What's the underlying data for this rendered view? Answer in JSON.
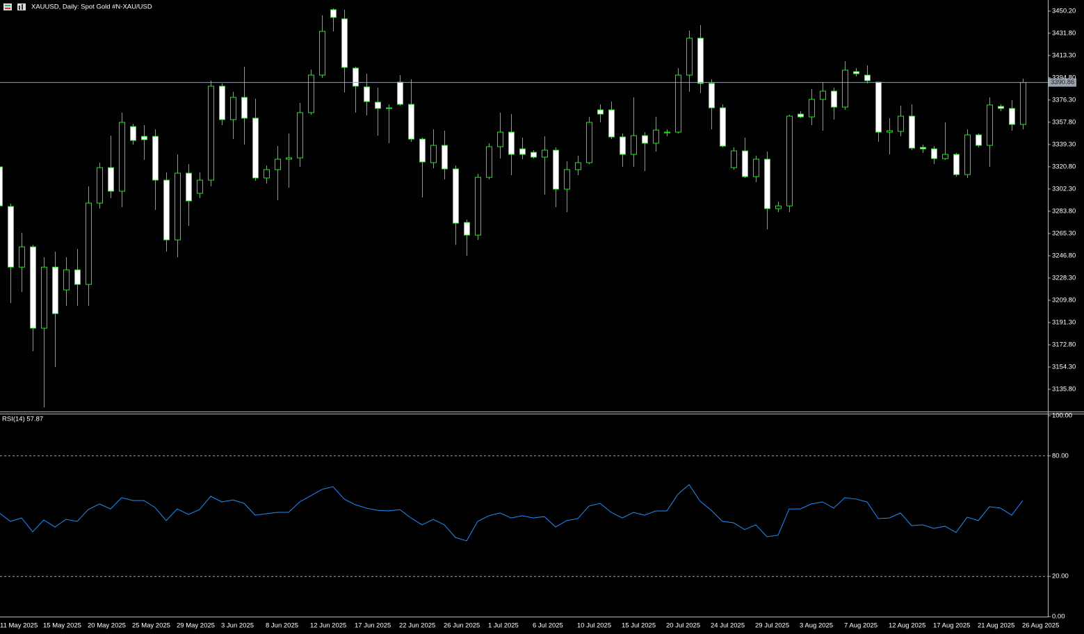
{
  "chart_data": [
    {
      "type": "candlestick",
      "title": "XAUUSD, Daily:  Spot Gold #N-XAU/USD",
      "categories": [
        "11 May 2025",
        null,
        null,
        null,
        "15 May 2025",
        null,
        null,
        null,
        "20 May 2025",
        null,
        null,
        null,
        "25 May 2025",
        null,
        null,
        null,
        "29 May 2025",
        null,
        null,
        null,
        "3 Jun 2025",
        null,
        null,
        null,
        "8 Jun 2025",
        null,
        null,
        null,
        "12 Jun 2025",
        null,
        null,
        null,
        "17 Jun 2025",
        null,
        null,
        null,
        "22 Jun 2025",
        null,
        null,
        null,
        "26 Jun 2025",
        null,
        null,
        null,
        "1 Jul 2025",
        null,
        null,
        null,
        "6 Jul 2025",
        null,
        null,
        null,
        "10 Jul 2025",
        null,
        null,
        null,
        "15 Jul 2025",
        null,
        null,
        null,
        "20 Jul 2025",
        null,
        null,
        null,
        "24 Jul 2025",
        null,
        null,
        null,
        "29 Jul 2025",
        null,
        null,
        null,
        "3 Aug 2025",
        null,
        null,
        null,
        "7 Aug 2025",
        null,
        null,
        null,
        "12 Aug 2025",
        null,
        null,
        null,
        "17 Aug 2025",
        null,
        null,
        null,
        "21 Aug 2025",
        null,
        null,
        null,
        "26 Aug 2025"
      ],
      "open": [
        3320.7,
        3287.8,
        3237.4,
        3254.2,
        3186.6,
        3237.4,
        3218.4,
        3235.1,
        3223.0,
        3290.6,
        3320.1,
        3300.5,
        3354.2,
        3346.1,
        3346.1,
        3309.7,
        3260.0,
        3315.5,
        3298.7,
        3309.7,
        3387.8,
        3360.0,
        3378.5,
        3361.2,
        3311.5,
        3318.4,
        3327.1,
        3328.2,
        3365.8,
        3397.0,
        3451.4,
        3443.8,
        3402.8,
        3387.2,
        3374.5,
        3369.8,
        3391.2,
        3372.7,
        3343.8,
        3324.2,
        3338.6,
        3319.0,
        3274.5,
        3264.0,
        3312.0,
        3337.5,
        3349.6,
        3335.7,
        3332.8,
        3328.8,
        3334.6,
        3302.2,
        3318.4,
        3324.2,
        3368.1,
        3368.1,
        3345.6,
        3331.1,
        3346.7,
        3340.4,
        3349.0,
        3349.6,
        3397.0,
        3427.7,
        3390.1,
        3369.8,
        3320.1,
        3334.0,
        3312.6,
        3327.1,
        3286.0,
        3288.3,
        3364.6,
        3362.3,
        3376.8,
        3383.7,
        3370.4,
        3399.9,
        3397.0,
        3391.2,
        3349.6,
        3350.2,
        3362.9,
        3336.9,
        3335.7,
        3327.6,
        3331.1,
        3314.3,
        3347.3,
        3338.6,
        3371.0,
        3369.3,
        3356.0
      ],
      "high": [
        3326.5,
        3290.1,
        3265.8,
        3255.9,
        3245.5,
        3250.2,
        3245.5,
        3252.5,
        3304.5,
        3324.2,
        3346.7,
        3365.8,
        3356.5,
        3355.4,
        3351.9,
        3316.1,
        3331.1,
        3323.0,
        3316.1,
        3392.4,
        3390.1,
        3383.1,
        3404.0,
        3377.4,
        3321.9,
        3338.0,
        3348.5,
        3373.9,
        3401.6,
        3446.7,
        3452.5,
        3451.4,
        3404.0,
        3398.2,
        3386.6,
        3372.7,
        3397.0,
        3393.5,
        3345.0,
        3351.9,
        3350.8,
        3321.9,
        3276.8,
        3314.9,
        3340.4,
        3365.8,
        3364.6,
        3345.0,
        3334.6,
        3346.1,
        3336.9,
        3325.3,
        3330.0,
        3362.3,
        3372.7,
        3375.0,
        3348.5,
        3378.5,
        3349.6,
        3362.3,
        3351.9,
        3402.8,
        3434.0,
        3438.6,
        3393.5,
        3372.7,
        3336.9,
        3345.0,
        3330.0,
        3333.4,
        3291.8,
        3364.1,
        3367.0,
        3385.5,
        3391.2,
        3386.6,
        3408.6,
        3402.8,
        3405.1,
        3391.2,
        3361.2,
        3371.6,
        3372.7,
        3339.2,
        3338.0,
        3357.7,
        3332.3,
        3351.9,
        3348.5,
        3378.5,
        3372.7,
        3376.2,
        3394.1
      ],
      "low": [
        3286.0,
        3207.4,
        3216.6,
        3167.5,
        3120.7,
        3154.2,
        3205.1,
        3205.1,
        3205.1,
        3286.0,
        3294.7,
        3287.2,
        3339.2,
        3326.5,
        3284.9,
        3250.2,
        3245.5,
        3271.6,
        3294.7,
        3304.5,
        3355.4,
        3343.8,
        3339.2,
        3309.1,
        3306.8,
        3293.0,
        3303.4,
        3320.7,
        3364.1,
        3394.7,
        3433.4,
        3382.6,
        3365.8,
        3363.5,
        3346.7,
        3340.4,
        3371.6,
        3341.5,
        3295.3,
        3319.5,
        3310.3,
        3255.9,
        3246.7,
        3260.0,
        3310.3,
        3327.6,
        3313.8,
        3327.1,
        3327.6,
        3297.6,
        3287.2,
        3283.1,
        3313.8,
        3323.0,
        3357.7,
        3343.8,
        3320.7,
        3320.7,
        3317.2,
        3333.4,
        3346.1,
        3348.5,
        3383.1,
        3382.0,
        3351.9,
        3336.9,
        3318.4,
        3311.5,
        3308.0,
        3268.7,
        3283.1,
        3283.1,
        3361.2,
        3355.4,
        3350.8,
        3360.0,
        3368.1,
        3395.9,
        3390.1,
        3341.5,
        3331.1,
        3346.1,
        3334.6,
        3332.3,
        3323.0,
        3326.5,
        3312.6,
        3311.5,
        3336.9,
        3320.7,
        3367.0,
        3350.8,
        3351.9
      ],
      "close": [
        3288.3,
        3237.4,
        3254.2,
        3186.6,
        3237.4,
        3198.7,
        3235.1,
        3223.0,
        3290.6,
        3320.1,
        3300.5,
        3357.7,
        3342.7,
        3343.3,
        3309.7,
        3260.0,
        3315.5,
        3292.4,
        3309.7,
        3387.8,
        3360.0,
        3378.5,
        3361.2,
        3311.5,
        3318.4,
        3327.1,
        3328.2,
        3365.8,
        3397.0,
        3433.4,
        3445.0,
        3403.4,
        3387.8,
        3375.0,
        3369.3,
        3369.3,
        3372.7,
        3343.8,
        3324.8,
        3338.6,
        3319.0,
        3273.9,
        3264.0,
        3312.0,
        3337.5,
        3349.6,
        3331.1,
        3331.1,
        3328.8,
        3334.6,
        3302.2,
        3318.4,
        3324.2,
        3357.7,
        3364.6,
        3345.6,
        3331.1,
        3346.7,
        3340.4,
        3351.3,
        3349.6,
        3397.0,
        3427.7,
        3390.1,
        3369.8,
        3338.0,
        3334.0,
        3312.6,
        3327.1,
        3286.0,
        3288.3,
        3362.9,
        3362.3,
        3376.8,
        3383.7,
        3370.4,
        3401.1,
        3398.2,
        3392.4,
        3349.6,
        3350.8,
        3362.9,
        3336.3,
        3335.7,
        3327.6,
        3331.1,
        3314.3,
        3347.3,
        3338.6,
        3372.2,
        3369.3,
        3356.0,
        3390.86
      ],
      "up_color": "#00ff00",
      "down_color": "#ffffff",
      "ylim": [
        3117.3,
        3459.45
      ],
      "yticks": [
        {
          "value": 3450.2,
          "label": "3450.20"
        },
        {
          "value": 3431.8,
          "label": "3431.80"
        },
        {
          "value": 3413.3,
          "label": "3413.30"
        },
        {
          "value": 3394.8,
          "label": "3394.80"
        },
        {
          "value": 3376.3,
          "label": "3376.30"
        },
        {
          "value": 3357.8,
          "label": "3357.80"
        },
        {
          "value": 3339.3,
          "label": "3339.30"
        },
        {
          "value": 3320.8,
          "label": "3320.80"
        },
        {
          "value": 3302.3,
          "label": "3302.30"
        },
        {
          "value": 3283.8,
          "label": "3283.80"
        },
        {
          "value": 3265.3,
          "label": "3265.30"
        },
        {
          "value": 3246.8,
          "label": "3246.80"
        },
        {
          "value": 3228.3,
          "label": "3228.30"
        },
        {
          "value": 3209.8,
          "label": "3209.80"
        },
        {
          "value": 3191.3,
          "label": "3191.30"
        },
        {
          "value": 3172.8,
          "label": "3172.80"
        },
        {
          "value": 3154.3,
          "label": "3154.30"
        },
        {
          "value": 3135.8,
          "label": "3135.80"
        }
      ],
      "last_price": 3390.86,
      "last_price_color": "#9aa6b2"
    },
    {
      "type": "line",
      "title": "RSI(14) 57.87",
      "values": [
        51.6,
        47.4,
        49.1,
        42.2,
        48.1,
        44.6,
        48.4,
        47.4,
        53.3,
        56.1,
        53.6,
        59.2,
        57.8,
        57.8,
        54.3,
        47.8,
        53.6,
        50.9,
        53.3,
        59.9,
        57.1,
        58.1,
        56.4,
        50.5,
        51.2,
        51.9,
        51.9,
        57.1,
        60.2,
        63.3,
        64.7,
        58.5,
        55.7,
        54.0,
        52.9,
        52.6,
        53.3,
        49.1,
        45.7,
        48.4,
        45.7,
        39.4,
        37.7,
        47.4,
        50.2,
        51.6,
        49.1,
        50.2,
        49.1,
        49.8,
        44.6,
        47.8,
        48.8,
        55.0,
        56.4,
        51.9,
        49.1,
        51.9,
        50.5,
        52.6,
        52.6,
        60.9,
        65.7,
        57.4,
        52.9,
        47.4,
        46.7,
        43.3,
        45.7,
        39.8,
        40.5,
        53.6,
        53.6,
        56.1,
        57.1,
        54.0,
        59.2,
        58.5,
        57.1,
        48.8,
        49.1,
        51.6,
        45.3,
        45.7,
        43.9,
        45.0,
        41.9,
        49.5,
        47.8,
        54.7,
        54.0,
        50.5,
        57.87
      ],
      "color": "#1e90ff",
      "ylim": [
        0,
        100
      ],
      "yticks": [
        {
          "value": 100,
          "label": "100.00"
        },
        {
          "value": 80,
          "label": "80.00"
        },
        {
          "value": 20,
          "label": "20.00"
        },
        {
          "value": 0,
          "label": "0.00"
        }
      ],
      "levels": [
        80,
        20
      ]
    }
  ]
}
